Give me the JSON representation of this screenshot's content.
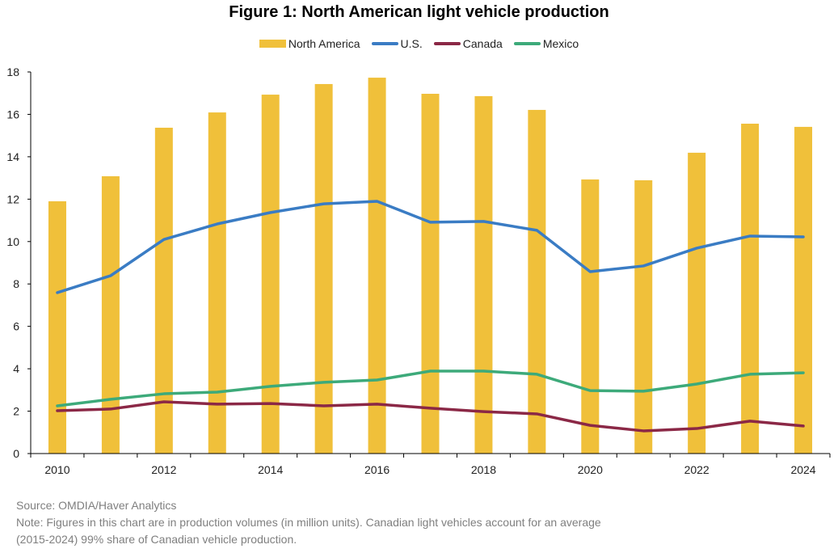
{
  "chart_data": {
    "type": "bar+line",
    "title": "Figure 1: North American light vehicle production",
    "categories": [
      "2010",
      "2011",
      "2012",
      "2013",
      "2014",
      "2015",
      "2016",
      "2017",
      "2018",
      "2019",
      "2020",
      "2021",
      "2022",
      "2023",
      "2024"
    ],
    "x_tick_labels": [
      "2010",
      "2012",
      "2014",
      "2016",
      "2018",
      "2020",
      "2022",
      "2024"
    ],
    "ylim": [
      0,
      18
    ],
    "y_ticks": [
      "0",
      "2",
      "4",
      "6",
      "8",
      "10",
      "12",
      "14",
      "16",
      "18"
    ],
    "grid": false,
    "legend_position": "top",
    "series": [
      {
        "name": "North America",
        "type": "bar",
        "color": "#F0C03A",
        "values": [
          11.9,
          13.08,
          15.37,
          16.09,
          16.93,
          17.43,
          17.73,
          16.97,
          16.86,
          16.21,
          12.93,
          12.89,
          14.19,
          15.56,
          15.41
        ]
      },
      {
        "name": "U.S.",
        "type": "line",
        "color": "#3A7CC4",
        "values": [
          7.59,
          8.39,
          10.1,
          10.83,
          11.37,
          11.78,
          11.9,
          10.91,
          10.95,
          10.53,
          8.58,
          8.85,
          9.69,
          10.26,
          10.22
        ]
      },
      {
        "name": "Canada",
        "type": "line",
        "color": "#8B2846",
        "values": [
          2.02,
          2.1,
          2.44,
          2.33,
          2.36,
          2.25,
          2.33,
          2.14,
          1.98,
          1.87,
          1.33,
          1.07,
          1.18,
          1.53,
          1.3
        ]
      },
      {
        "name": "Mexico",
        "type": "line",
        "color": "#3DAA7A",
        "values": [
          2.25,
          2.56,
          2.82,
          2.9,
          3.17,
          3.36,
          3.47,
          3.89,
          3.89,
          3.74,
          2.97,
          2.94,
          3.28,
          3.74,
          3.81
        ]
      }
    ]
  },
  "footer": {
    "source": "Source: OMDIA/Haver Analytics",
    "note_line1": "Note: Figures in this chart are in production volumes (in million units). Canadian light vehicles account for an average",
    "note_line2": "(2015-2024) 99% share of Canadian vehicle production."
  }
}
